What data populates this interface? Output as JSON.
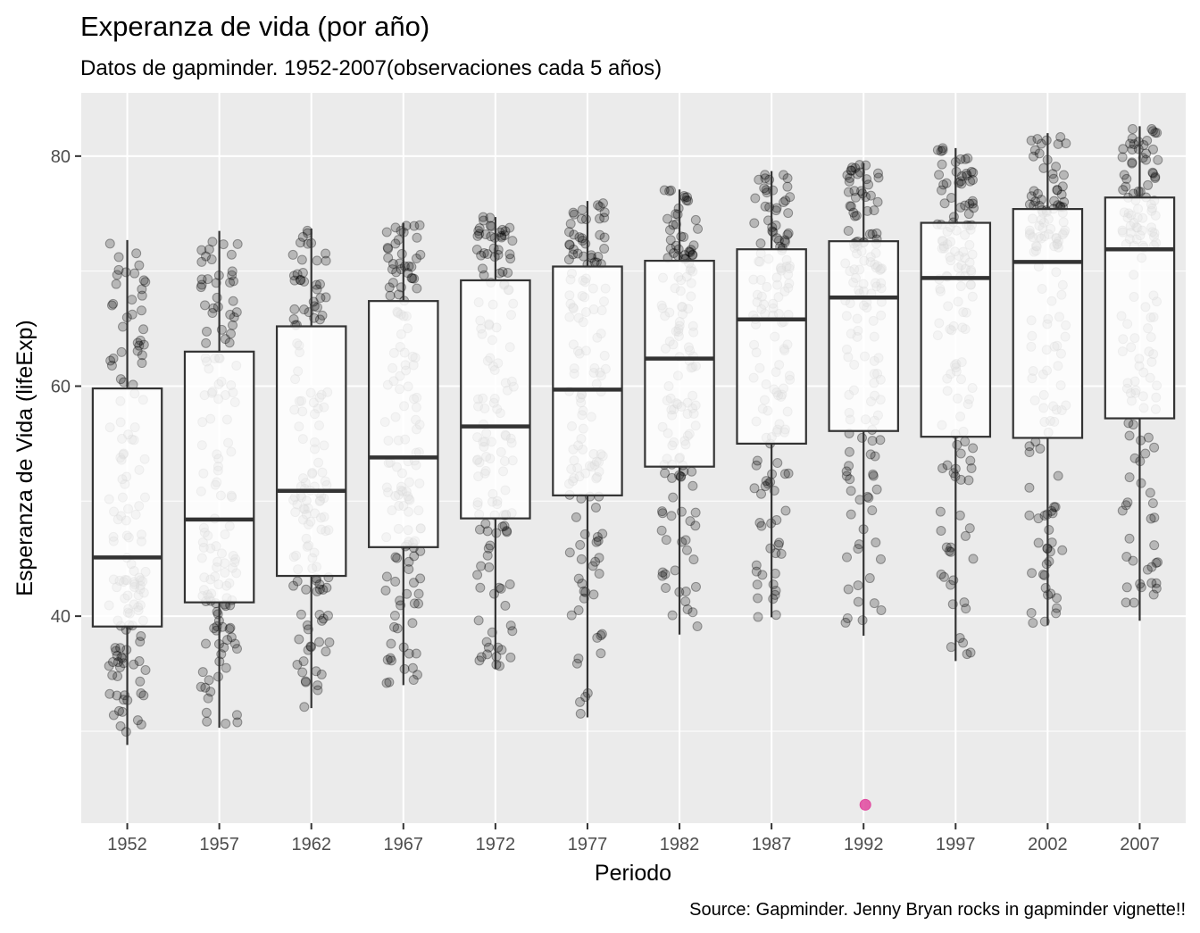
{
  "chart_data": {
    "type": "boxplot",
    "title": "Experanza de vida (por año)",
    "subtitle": "Datos de gapminder. 1952-2007(observaciones cada 5 años)",
    "caption": "Source: Gapminder. Jenny Bryan rocks in gapminder vignette!!",
    "xlabel": "Periodo",
    "ylabel": "Esperanza de Vida (lifeExp)",
    "categories": [
      "1952",
      "1957",
      "1962",
      "1967",
      "1972",
      "1977",
      "1982",
      "1987",
      "1992",
      "1997",
      "2002",
      "2007"
    ],
    "yticks": [
      40,
      60,
      80
    ],
    "ylim": [
      22,
      85.5
    ],
    "grid": true,
    "jitter_points": true,
    "point_color": "#000000",
    "highlight_color": "#e0479e",
    "boxes": [
      {
        "x": "1952",
        "min": 28.8,
        "q1": 39.1,
        "median": 45.1,
        "q3": 59.8,
        "max": 72.7
      },
      {
        "x": "1957",
        "min": 30.3,
        "q1": 41.2,
        "median": 48.4,
        "q3": 63.0,
        "max": 73.5
      },
      {
        "x": "1962",
        "min": 32.0,
        "q1": 43.5,
        "median": 50.9,
        "q3": 65.2,
        "max": 73.7
      },
      {
        "x": "1967",
        "min": 34.0,
        "q1": 46.0,
        "median": 53.8,
        "q3": 67.4,
        "max": 74.2
      },
      {
        "x": "1972",
        "min": 35.4,
        "q1": 48.5,
        "median": 56.5,
        "q3": 69.2,
        "max": 74.7
      },
      {
        "x": "1977",
        "min": 31.2,
        "q1": 50.5,
        "median": 59.7,
        "q3": 70.4,
        "max": 76.1
      },
      {
        "x": "1982",
        "min": 38.4,
        "q1": 53.0,
        "median": 62.4,
        "q3": 70.9,
        "max": 77.1
      },
      {
        "x": "1987",
        "min": 39.9,
        "q1": 55.0,
        "median": 65.8,
        "q3": 71.9,
        "max": 78.7
      },
      {
        "x": "1992",
        "min": 38.3,
        "q1": 56.1,
        "median": 67.7,
        "q3": 72.6,
        "max": 79.4
      },
      {
        "x": "1997",
        "min": 36.1,
        "q1": 55.6,
        "median": 69.4,
        "q3": 74.2,
        "max": 80.7
      },
      {
        "x": "2002",
        "min": 39.2,
        "q1": 55.5,
        "median": 70.8,
        "q3": 75.4,
        "max": 82.0
      },
      {
        "x": "2007",
        "min": 39.6,
        "q1": 57.2,
        "median": 71.9,
        "q3": 76.4,
        "max": 82.6
      }
    ],
    "outliers": [
      {
        "x": "1992",
        "y": 23.6
      }
    ]
  }
}
